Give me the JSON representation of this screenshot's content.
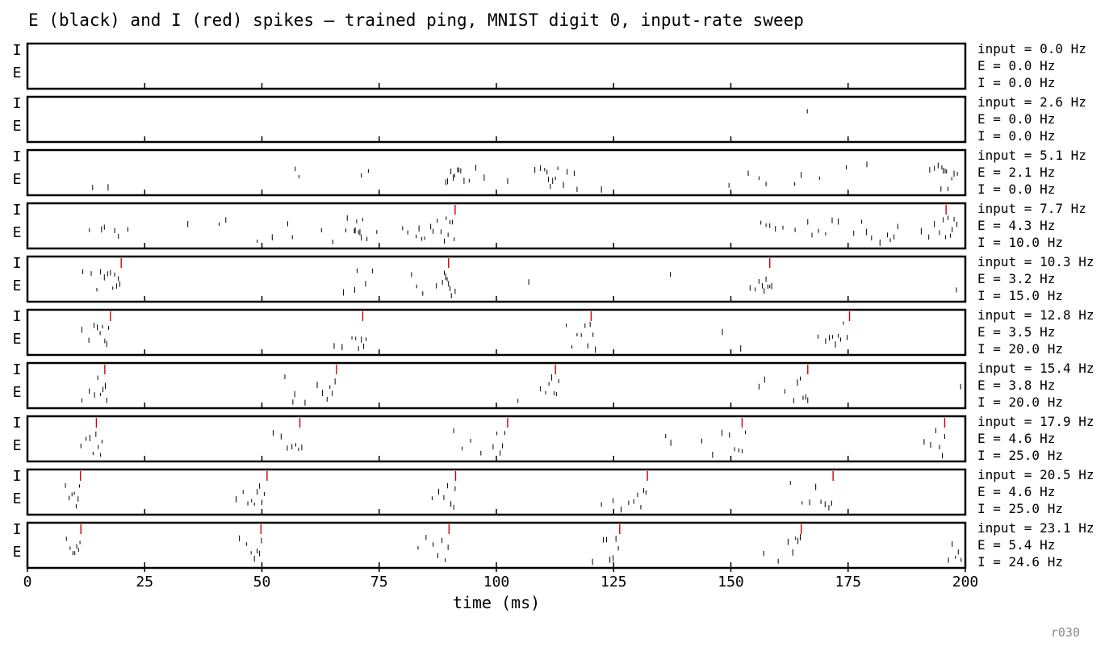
{
  "chart_data": {
    "type": "raster",
    "title": "E (black) and I (red) spikes — trained ping, MNIST digit 0, input-rate sweep",
    "xlabel": "time (ms)",
    "xlim": [
      0,
      200
    ],
    "xticks": [
      0,
      25,
      50,
      75,
      100,
      125,
      150,
      175,
      200
    ],
    "row_labels": [
      "I",
      "E"
    ],
    "colors": {
      "E": "#000000",
      "I": "#cc0000"
    },
    "panels": [
      {
        "lines": [
          "input = 0.0 Hz",
          "E = 0.0 Hz",
          "I = 0.0 Hz"
        ],
        "e_spikes": [],
        "i_spikes": []
      },
      {
        "lines": [
          "input = 2.6 Hz",
          "E = 0.0 Hz",
          "I = 0.0 Hz"
        ],
        "e_spikes": [
          166.3
        ],
        "i_spikes": []
      },
      {
        "lines": [
          "input = 5.1 Hz",
          "E = 2.1 Hz",
          "I = 0.0 Hz"
        ],
        "e_spikes": [
          13.9,
          17.2,
          57.1,
          57.9,
          71.2,
          72.7,
          89.2,
          89.6,
          90.3,
          90.8,
          91.1,
          91.7,
          92.0,
          92.4,
          93.1,
          94.2,
          95.6,
          97.4,
          102.4,
          108.2,
          109.4,
          110.3,
          110.8,
          111.1,
          111.5,
          112.0,
          112.6,
          113.1,
          114.3,
          115.1,
          116.6,
          117.2,
          122.4,
          149.6,
          153.7,
          156.0,
          157.5,
          163.6,
          165.0,
          168.9,
          174.6,
          179.0,
          192.4,
          193.4,
          194.2,
          194.8,
          195.0,
          195.3,
          195.7,
          196.0,
          196.3,
          197.1,
          197.6,
          198.3
        ],
        "i_spikes": []
      },
      {
        "lines": [
          "input = 7.7 Hz",
          "E = 4.3 Hz",
          "I = 10.0 Hz"
        ],
        "e_spikes": [
          13.2,
          15.8,
          16.4,
          18.6,
          19.4,
          21.4,
          34.2,
          40.9,
          42.3,
          49.0,
          52.2,
          55.5,
          56.5,
          62.7,
          65.1,
          67.9,
          68.2,
          69.7,
          69.9,
          70.2,
          70.6,
          70.9,
          71.2,
          71.5,
          72.4,
          74.5,
          80.0,
          81.1,
          82.9,
          83.5,
          84.1,
          84.7,
          86.0,
          86.5,
          87.4,
          88.2,
          88.9,
          89.3,
          89.7,
          90.1,
          90.6,
          91.0,
          156.4,
          157.5,
          158.3,
          159.5,
          161.1,
          163.7,
          166.4,
          167.3,
          168.7,
          170.2,
          171.6,
          172.9,
          176.2,
          177.9,
          178.9,
          180.0,
          181.8,
          183.4,
          184.0,
          184.8,
          185.6,
          190.6,
          192.2,
          193.4,
          194.5,
          195.3,
          195.8,
          196.3,
          196.8,
          197.2,
          197.6,
          198.2
        ],
        "i_spikes": [
          91.2,
          195.9
        ]
      },
      {
        "lines": [
          "input = 10.3 Hz",
          "E = 3.2 Hz",
          "I = 15.0 Hz"
        ],
        "e_spikes": [
          11.8,
          13.6,
          14.8,
          15.6,
          16.4,
          17.1,
          17.7,
          18.2,
          18.6,
          19.0,
          19.4,
          19.7,
          67.4,
          69.8,
          70.3,
          72.1,
          73.6,
          81.9,
          83.0,
          84.3,
          87.2,
          88.5,
          88.9,
          89.2,
          89.5,
          89.8,
          90.1,
          90.4,
          91.2,
          106.9,
          137.1,
          154.1,
          155.2,
          156.0,
          156.7,
          157.1,
          157.5,
          157.9,
          158.3,
          158.7,
          198.1
        ],
        "i_spikes": [
          20.0,
          89.8,
          158.3
        ]
      },
      {
        "lines": [
          "input = 12.8 Hz",
          "E = 3.5 Hz",
          "I = 20.0 Hz"
        ],
        "e_spikes": [
          11.6,
          13.1,
          14.2,
          14.9,
          15.5,
          16.0,
          16.5,
          16.9,
          17.3,
          65.4,
          67.1,
          69.2,
          70.0,
          70.6,
          71.2,
          71.7,
          72.2,
          114.9,
          116.1,
          117.2,
          118.1,
          118.9,
          119.5,
          120.0,
          120.6,
          121.1,
          148.2,
          152.1,
          168.6,
          170.2,
          171.0,
          171.7,
          172.3,
          172.9,
          173.4,
          174.0,
          174.8
        ],
        "i_spikes": [
          17.7,
          71.5,
          120.2,
          175.3
        ]
      },
      {
        "lines": [
          "input = 15.4 Hz",
          "E = 3.8 Hz",
          "I = 20.0 Hz"
        ],
        "e_spikes": [
          11.6,
          13.2,
          14.3,
          15.0,
          15.6,
          16.1,
          16.6,
          16.9,
          54.9,
          56.6,
          57.0,
          59.2,
          61.8,
          62.9,
          63.9,
          64.5,
          65.0,
          65.6,
          104.6,
          109.4,
          110.5,
          111.2,
          111.8,
          112.3,
          112.8,
          113.3,
          156.0,
          157.2,
          161.5,
          163.4,
          164.2,
          164.8,
          165.4,
          166.0,
          166.4,
          199.0
        ],
        "i_spikes": [
          16.5,
          65.9,
          112.6,
          166.4
        ]
      },
      {
        "lines": [
          "input = 17.9 Hz",
          "E = 4.6 Hz",
          "I = 25.0 Hz"
        ],
        "e_spikes": [
          11.4,
          12.5,
          13.3,
          14.0,
          14.6,
          15.1,
          15.6,
          15.9,
          52.4,
          54.1,
          55.4,
          56.4,
          57.2,
          57.8,
          58.5,
          90.9,
          92.7,
          94.5,
          96.7,
          99.3,
          100.1,
          100.8,
          101.3,
          101.8,
          136.1,
          137.2,
          143.8,
          146.1,
          148.1,
          149.7,
          150.8,
          151.7,
          152.4,
          153.1,
          191.2,
          192.6,
          193.7,
          194.5,
          195.1,
          195.6
        ],
        "i_spikes": [
          14.7,
          58.1,
          102.4,
          152.4,
          195.6
        ]
      },
      {
        "lines": [
          "input = 20.5 Hz",
          "E = 4.6 Hz",
          "I = 25.0 Hz"
        ],
        "e_spikes": [
          8.1,
          8.9,
          9.5,
          10.0,
          10.4,
          10.8,
          11.1,
          44.5,
          46.0,
          47.0,
          47.8,
          48.4,
          49.0,
          49.5,
          50.0,
          50.5,
          86.3,
          87.7,
          88.8,
          89.6,
          90.3,
          90.9,
          91.2,
          122.4,
          124.9,
          126.6,
          128.2,
          129.3,
          130.1,
          130.8,
          131.4,
          131.9,
          162.7,
          165.2,
          166.8,
          168.1,
          169.2,
          170.1,
          170.9,
          171.5
        ],
        "i_spikes": [
          11.3,
          51.1,
          91.3,
          132.2,
          171.8
        ]
      },
      {
        "lines": [
          "input = 23.1 Hz",
          "E = 5.4 Hz",
          "I = 24.6 Hz"
        ],
        "e_spikes": [
          8.3,
          9.1,
          9.7,
          10.1,
          10.5,
          10.9,
          11.2,
          45.2,
          46.7,
          47.7,
          48.4,
          49.0,
          49.5,
          49.9,
          83.3,
          85.0,
          86.5,
          87.5,
          88.4,
          89.1,
          89.7,
          120.5,
          122.8,
          123.5,
          124.2,
          124.9,
          125.5,
          126.0,
          157.0,
          160.1,
          162.2,
          163.2,
          163.8,
          164.3,
          164.8,
          196.4,
          197.2,
          197.9,
          198.5,
          199.1
        ],
        "i_spikes": [
          11.4,
          49.8,
          89.9,
          126.3,
          165.0
        ]
      }
    ]
  },
  "footer": {
    "run_id": "r030"
  }
}
